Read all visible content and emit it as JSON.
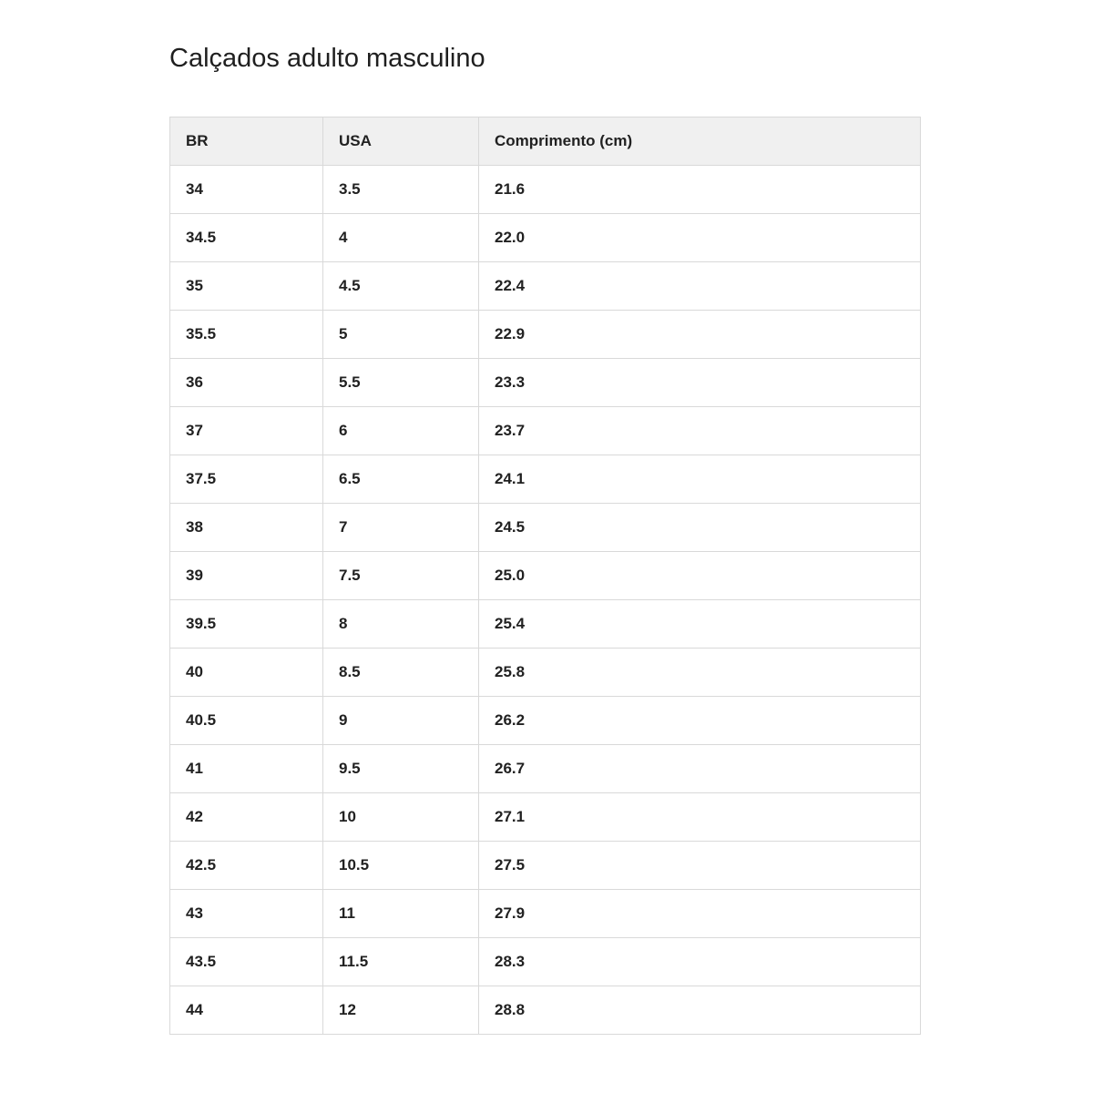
{
  "page": {
    "title": "Calçados adulto masculino"
  },
  "colors": {
    "header_bg": "#f0f0f0",
    "border": "#d9d9d9",
    "text": "#212121",
    "background": "#ffffff"
  },
  "table": {
    "headers": [
      "BR",
      "USA",
      "Comprimento (cm)"
    ],
    "rows": [
      [
        "34",
        "3.5",
        "21.6"
      ],
      [
        "34.5",
        "4",
        "22.0"
      ],
      [
        "35",
        "4.5",
        "22.4"
      ],
      [
        "35.5",
        "5",
        "22.9"
      ],
      [
        "36",
        "5.5",
        "23.3"
      ],
      [
        "37",
        "6",
        "23.7"
      ],
      [
        "37.5",
        "6.5",
        "24.1"
      ],
      [
        "38",
        "7",
        "24.5"
      ],
      [
        "39",
        "7.5",
        "25.0"
      ],
      [
        "39.5",
        "8",
        "25.4"
      ],
      [
        "40",
        "8.5",
        "25.8"
      ],
      [
        "40.5",
        "9",
        "26.2"
      ],
      [
        "41",
        "9.5",
        "26.7"
      ],
      [
        "42",
        "10",
        "27.1"
      ],
      [
        "42.5",
        "10.5",
        "27.5"
      ],
      [
        "43",
        "11",
        "27.9"
      ],
      [
        "43.5",
        "11.5",
        "28.3"
      ],
      [
        "44",
        "12",
        "28.8"
      ]
    ]
  }
}
